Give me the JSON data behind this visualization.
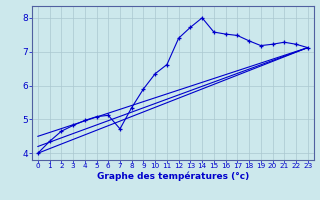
{
  "xlabel": "Graphe des températures (°c)",
  "bg_color": "#cce8ec",
  "grid_color": "#aac8d0",
  "line_color": "#0000cc",
  "spine_color": "#5060a0",
  "xlim": [
    -0.5,
    23.5
  ],
  "ylim": [
    3.8,
    8.35
  ],
  "xticks": [
    0,
    1,
    2,
    3,
    4,
    5,
    6,
    7,
    8,
    9,
    10,
    11,
    12,
    13,
    14,
    15,
    16,
    17,
    18,
    19,
    20,
    21,
    22,
    23
  ],
  "yticks": [
    4,
    5,
    6,
    7,
    8
  ],
  "line1_x": [
    0,
    1,
    2,
    3,
    4,
    5,
    6,
    7,
    8,
    9,
    10,
    11,
    12,
    13,
    14,
    15,
    16,
    17,
    18,
    19,
    20,
    21,
    22,
    23
  ],
  "line1_y": [
    4.0,
    4.35,
    4.65,
    4.82,
    4.97,
    5.08,
    5.12,
    4.72,
    5.35,
    5.9,
    6.35,
    6.62,
    7.4,
    7.72,
    8.0,
    7.58,
    7.52,
    7.48,
    7.32,
    7.18,
    7.22,
    7.28,
    7.22,
    7.12
  ],
  "line2_x": [
    0,
    23
  ],
  "line2_y": [
    4.0,
    7.12
  ],
  "line3_x": [
    0,
    23
  ],
  "line3_y": [
    4.2,
    7.12
  ],
  "line4_x": [
    0,
    23
  ],
  "line4_y": [
    4.5,
    7.12
  ]
}
